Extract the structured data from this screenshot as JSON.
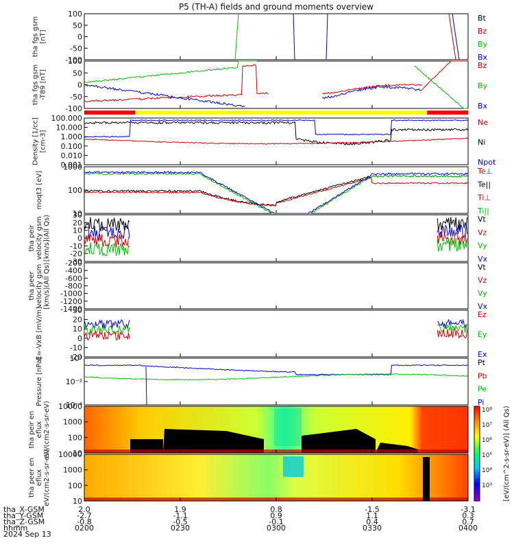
{
  "title": "P5 (TH-A) fields and ground moments overview",
  "colors": {
    "black": "#000000",
    "red": "#cc0000",
    "green": "#00bb00",
    "blue": "#0000cc"
  },
  "chart_data": {
    "type": "line",
    "title": "P5 (TH-A) fields and ground moments overview",
    "x_ticks": [
      "0200",
      "0230",
      "0300",
      "0330",
      "0400"
    ],
    "panels": [
      {
        "id": "fgs-gsm",
        "ylabel": "tha fgs gsm [nT]",
        "yticks": [
          "100",
          "50",
          "0",
          "-50",
          "-100"
        ],
        "ylim": [
          -100,
          100
        ],
        "legend": [
          {
            "name": "Bt",
            "color": "black"
          },
          {
            "name": "Bz",
            "color": "red"
          },
          {
            "name": "By",
            "color": "green"
          },
          {
            "name": "Bx",
            "color": "blue"
          }
        ]
      },
      {
        "id": "fgs-gsm-t89",
        "ylabel": "tha fgs gsm -T89 [nT]",
        "yticks": [
          "100",
          "50",
          "0",
          "-50",
          "-100"
        ],
        "ylim": [
          -100,
          100
        ],
        "legend": [
          {
            "name": "Bz",
            "color": "red"
          },
          {
            "name": "By",
            "color": "green"
          },
          {
            "name": "Bx",
            "color": "blue"
          }
        ]
      },
      {
        "id": "density",
        "ylabel": "Density [1/cc] [cm-3]",
        "yticks": [
          "100.000",
          "10.000",
          "1.000",
          "0.100",
          "0.010",
          "0.001"
        ],
        "log": true,
        "legend": [
          {
            "name": "Ne",
            "color": "red"
          },
          {
            "name": "Ni",
            "color": "black"
          },
          {
            "name": "Npot",
            "color": "blue"
          }
        ]
      },
      {
        "id": "temperature",
        "ylabel": "moqt3 [eV]",
        "yticks": [
          "1000",
          "100",
          "10"
        ],
        "log": true,
        "legend": [
          {
            "name": "Te⊥",
            "color": "red"
          },
          {
            "name": "Te||",
            "color": "black"
          },
          {
            "name": "Ti⊥",
            "color": "red"
          },
          {
            "name": "Ti||",
            "color": "green"
          }
        ]
      },
      {
        "id": "peir-velocity",
        "ylabel": "tha peir velocity gsm [km/s](All Qs)",
        "yticks": [
          "30",
          "20",
          "10",
          "0",
          "-10",
          "-20",
          "-30"
        ],
        "ylim": [
          -30,
          30
        ],
        "legend": [
          {
            "name": "Vt",
            "color": "black"
          },
          {
            "name": "Vz",
            "color": "red"
          },
          {
            "name": "Vy",
            "color": "green"
          },
          {
            "name": "Vx",
            "color": "blue"
          }
        ]
      },
      {
        "id": "peer-velocity",
        "ylabel": "tha peer velocity gsm [km/s](All Qs)",
        "yticks": [
          "-200",
          "-400",
          "-600",
          "-800",
          "-1000",
          "-1200",
          "-1400"
        ],
        "legend": [
          {
            "name": "Vt",
            "color": "black"
          },
          {
            "name": "Vz",
            "color": "red"
          },
          {
            "name": "Vy",
            "color": "green"
          },
          {
            "name": "Vx",
            "color": "blue"
          }
        ]
      },
      {
        "id": "efield",
        "ylabel": "E=-VxB [mV/m]",
        "yticks": [
          "30",
          "20",
          "10",
          "0",
          "-10",
          "-20"
        ],
        "ylim": [
          -20,
          30
        ],
        "legend": [
          {
            "name": "Ez",
            "color": "red"
          },
          {
            "name": "Ey",
            "color": "green"
          },
          {
            "name": "Ex",
            "color": "blue"
          }
        ]
      },
      {
        "id": "pressure",
        "ylabel": "Pressure [nPa]",
        "yticks": [
          "10⁰",
          "10⁻²",
          "10⁻⁴"
        ],
        "log": true,
        "legend": [
          {
            "name": "Pt",
            "color": "black"
          },
          {
            "name": "Pb",
            "color": "red"
          },
          {
            "name": "Pe",
            "color": "green"
          },
          {
            "name": "Pi",
            "color": "blue"
          }
        ]
      },
      {
        "id": "peir-spectrogram",
        "ylabel": "tha peir en eflux eV/(cm2-s-sr-eV)",
        "yticks": [
          "10000",
          "1000",
          "100",
          "10"
        ],
        "type": "heatmap"
      },
      {
        "id": "peer-spectrogram",
        "ylabel": "tha peer en eflux eV/(cm2-s-sr-eV)",
        "yticks": [
          "10000",
          "1000",
          "100",
          "10"
        ],
        "type": "heatmap"
      }
    ],
    "colorbar": {
      "label": "[eV/(cm^2-s-sr-eV)] (All Qs)",
      "ticks": [
        "10⁸",
        "10⁷",
        "10⁶",
        "10⁵",
        "10⁴",
        "10³"
      ]
    },
    "orbit_rows": [
      {
        "label": "tha_X-GSM",
        "values": [
          "2.0",
          "1.9",
          "0.8",
          "-1.5",
          "-3.1"
        ]
      },
      {
        "label": "tha_Y-GSM",
        "values": [
          "-2.7",
          "-1.1",
          "0.9",
          "1.1",
          "0.3"
        ]
      },
      {
        "label": "tha_Z-GSM",
        "values": [
          "-0.8",
          "-0.5",
          "-0.1",
          "0.4",
          "0.7"
        ]
      },
      {
        "label": "hhmm",
        "values": [
          "0200",
          "0230",
          "0300",
          "0330",
          "0400"
        ]
      }
    ],
    "date": "2024 Sep 13"
  }
}
